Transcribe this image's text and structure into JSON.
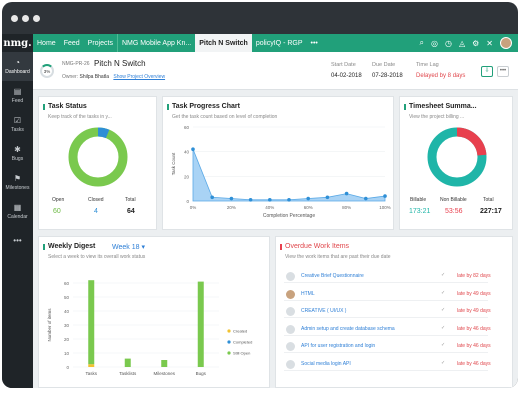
{
  "window": {
    "dots": [
      "",
      "",
      ""
    ]
  },
  "topnav": {
    "logo": "nmg.",
    "items": [
      "Home",
      "Feed",
      "Projects",
      "NMG Mobile App Kn...",
      "Pitch N Switch",
      "policyIQ - RGP",
      "•••"
    ],
    "active_index": 4,
    "icons": [
      "search-icon",
      "game-icon",
      "timer-icon",
      "bell-icon",
      "settings-icon",
      "tools-icon",
      "avatar"
    ]
  },
  "sidebar": {
    "items": [
      {
        "label": "Dashboard",
        "icon": "dashboard-icon",
        "glyph": "◔"
      },
      {
        "label": "Feed",
        "icon": "feed-icon",
        "glyph": "▤"
      },
      {
        "label": "Tasks",
        "icon": "tasks-icon",
        "glyph": "☑"
      },
      {
        "label": "Bugs",
        "icon": "bugs-icon",
        "glyph": "✱"
      },
      {
        "label": "Milestones",
        "icon": "milestones-icon",
        "glyph": "⚑"
      },
      {
        "label": "Calendar",
        "icon": "calendar-icon",
        "glyph": "▦"
      },
      {
        "label": "•••",
        "icon": "more-icon",
        "glyph": ""
      }
    ]
  },
  "project": {
    "progress": "3%",
    "id": "NMG-PR-26",
    "name": "Pitch N Switch",
    "owner_label": "Owner:",
    "owner": "Shilpa Bhatla",
    "overview_link": "Show Project Overview",
    "start_label": "Start Date",
    "start": "04-02-2018",
    "due_label": "Due Date",
    "due": "07-28-2018",
    "lag_label": "Time Lag",
    "lag": "Delayed by 8 days"
  },
  "task_status": {
    "title": "Task Status",
    "subtitle": "Keep track of the tasks in y...",
    "open_label": "Open",
    "open": "60",
    "closed_label": "Closed",
    "closed": "4",
    "total_label": "Total",
    "total": "64",
    "colors": {
      "open": "#7ac94e",
      "closed": "#2e8fd6"
    }
  },
  "progress_chart": {
    "title": "Task Progress Chart",
    "subtitle": "Get the task count based on level of completion",
    "ylabel": "Task Count",
    "xlabel": "Completion Percentage"
  },
  "chart_data": {
    "type": "area",
    "x": [
      0,
      10,
      20,
      30,
      40,
      50,
      60,
      70,
      80,
      90,
      100
    ],
    "x_ticks": [
      "0%",
      "20%",
      "40%",
      "60%",
      "80%",
      "100%"
    ],
    "values": [
      42,
      3,
      2,
      1,
      1,
      1,
      2,
      3,
      6,
      2,
      4
    ],
    "ylim": [
      0,
      60
    ],
    "y_ticks": [
      "0",
      "20",
      "40",
      "60"
    ],
    "color": "#5aa9e6"
  },
  "timesheet": {
    "title": "Timesheet Summa...",
    "subtitle": "View the project billing ...",
    "billable_label": "Billable",
    "billable": "173:21",
    "nonbillable_label": "Non Billable",
    "nonbillable": "53:56",
    "total_label": "Total",
    "total": "227:17",
    "colors": {
      "billable": "#1fb5a8",
      "nonbillable": "#e8404e"
    }
  },
  "weekly": {
    "title": "Weekly Digest",
    "week": "Week 18",
    "subtitle": "Select a week to view its overall work status",
    "ylabel": "Number of items",
    "y_ticks": [
      "0",
      "10",
      "20",
      "30",
      "40",
      "50",
      "60"
    ],
    "categories": [
      "Tasks",
      "Tasklists",
      "Milestones",
      "Bugs"
    ],
    "legend": [
      "Created",
      "Completed",
      "Still Open"
    ],
    "legend_colors": [
      "#f2c230",
      "#2e8fd6",
      "#7ac94e"
    ],
    "series": [
      {
        "name": "Created",
        "values": [
          2,
          0,
          0,
          0
        ]
      },
      {
        "name": "Completed",
        "values": [
          0,
          0,
          0,
          0
        ]
      },
      {
        "name": "Still Open",
        "values": [
          60,
          6,
          5,
          61
        ]
      }
    ]
  },
  "overdue": {
    "title": "Overdue Work Items",
    "subtitle": "View the work items that are past their due date",
    "items": [
      {
        "name": "Creative Brief Questionnaire",
        "late": "late by 82 days"
      },
      {
        "name": "HTML",
        "late": "late by 49 days"
      },
      {
        "name": "CREATIVE ( UI/UX )",
        "late": "late by 49 days"
      },
      {
        "name": "Admin setup and create database schema",
        "late": "late by 46 days"
      },
      {
        "name": "API for user registration and login",
        "late": "late by 46 days"
      },
      {
        "name": "Social media login API",
        "late": "late by 46 days"
      }
    ]
  }
}
